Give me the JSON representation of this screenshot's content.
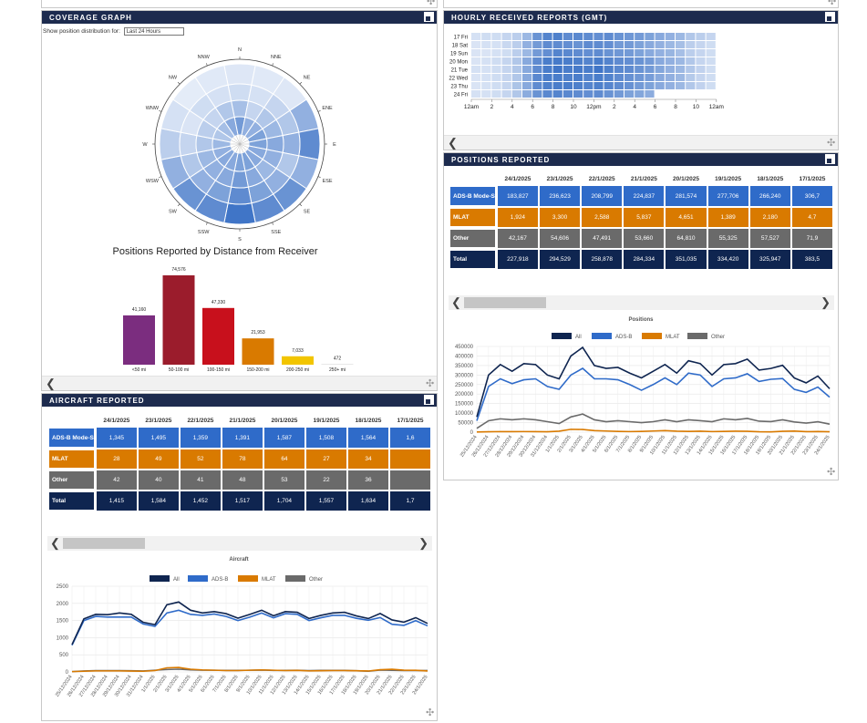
{
  "coverage": {
    "title": "COVERAGE GRAPH",
    "show_label": "Show position distribution for:",
    "select_value": "Last 24 Hours",
    "directions": [
      "N",
      "NNE",
      "NE",
      "ENE",
      "E",
      "ESE",
      "SE",
      "SSE",
      "S",
      "SSW",
      "SW",
      "WSW",
      "W",
      "WNW",
      "NW",
      "NNW"
    ],
    "rings": [
      [
        0.92,
        0.93,
        0.92,
        0.55,
        0.3,
        0.55,
        0.35,
        0.3,
        0.15,
        0.3,
        0.35,
        0.55,
        0.75,
        0.88,
        0.95,
        0.93
      ],
      [
        0.85,
        0.88,
        0.8,
        0.7,
        0.55,
        0.7,
        0.55,
        0.45,
        0.3,
        0.45,
        0.55,
        0.7,
        0.8,
        0.9,
        0.85,
        0.88
      ],
      [
        0.65,
        0.8,
        0.7,
        0.6,
        0.5,
        0.55,
        0.6,
        0.5,
        0.4,
        0.5,
        0.55,
        0.6,
        0.7,
        0.75,
        0.8,
        0.7
      ],
      [
        0.4,
        0.55,
        0.55,
        0.45,
        0.45,
        0.5,
        0.5,
        0.45,
        0.45,
        0.5,
        0.5,
        0.55,
        0.6,
        0.7,
        0.65,
        0.5
      ]
    ],
    "distance_chart_title": "Positions Reported by Distance from Receiver",
    "chart_data": {
      "type": "bar",
      "title": "Positions Reported by Distance from Receiver",
      "categories": [
        "<50 mi",
        "50-100 mi",
        "100-150 mi",
        "150-200 mi",
        "200-250 mi",
        "250+ mi"
      ],
      "values": [
        41160,
        74576,
        47330,
        21953,
        7033,
        472
      ],
      "value_labels": [
        "41,160",
        "74,576",
        "47,330",
        "21,953",
        "7,033",
        "472"
      ],
      "colors": [
        "#7b2d7f",
        "#9b1c2c",
        "#c8101c",
        "#d97a00",
        "#f2c500",
        "#d9d9d9"
      ]
    }
  },
  "hourly": {
    "title": "HOURLY RECEIVED REPORTS (GMT)",
    "days": [
      "17 Fri",
      "18 Sat",
      "19 Sun",
      "20 Mon",
      "21 Tue",
      "22 Wed",
      "23 Thu",
      "24 Fri"
    ],
    "hour_labels": [
      "12am",
      "2",
      "4",
      "6",
      "8",
      "10",
      "12pm",
      "2",
      "4",
      "6",
      "8",
      "10",
      "12am"
    ],
    "chart_data": {
      "type": "heatmap",
      "rows": [
        "17 Fri",
        "18 Sat",
        "19 Sun",
        "20 Mon",
        "21 Tue",
        "22 Wed",
        "23 Thu",
        "24 Fri"
      ],
      "x_labels": [
        "12am",
        "2",
        "4",
        "6",
        "8",
        "10",
        "12pm",
        "2",
        "4",
        "6",
        "8",
        "10",
        "12am"
      ],
      "values": [
        [
          0.12,
          0.15,
          0.15,
          0.2,
          0.25,
          0.4,
          0.65,
          0.75,
          0.78,
          0.7,
          0.72,
          0.7,
          0.68,
          0.7,
          0.65,
          0.62,
          0.6,
          0.55,
          0.5,
          0.45,
          0.4,
          0.3,
          0.25,
          0.2
        ],
        [
          0.1,
          0.12,
          0.12,
          0.18,
          0.25,
          0.45,
          0.6,
          0.7,
          0.7,
          0.68,
          0.65,
          0.7,
          0.7,
          0.68,
          0.6,
          0.6,
          0.55,
          0.5,
          0.45,
          0.4,
          0.35,
          0.25,
          0.2,
          0.15
        ],
        [
          0.1,
          0.1,
          0.12,
          0.15,
          0.25,
          0.4,
          0.6,
          0.68,
          0.75,
          0.72,
          0.7,
          0.68,
          0.7,
          0.65,
          0.62,
          0.6,
          0.55,
          0.5,
          0.45,
          0.42,
          0.35,
          0.25,
          0.2,
          0.15
        ],
        [
          0.1,
          0.12,
          0.15,
          0.2,
          0.3,
          0.5,
          0.7,
          0.8,
          0.82,
          0.8,
          0.78,
          0.75,
          0.8,
          0.75,
          0.7,
          0.68,
          0.65,
          0.6,
          0.5,
          0.45,
          0.4,
          0.3,
          0.2,
          0.15
        ],
        [
          0.12,
          0.12,
          0.15,
          0.2,
          0.3,
          0.5,
          0.7,
          0.8,
          0.85,
          0.8,
          0.82,
          0.8,
          0.85,
          0.78,
          0.72,
          0.7,
          0.65,
          0.6,
          0.52,
          0.45,
          0.4,
          0.3,
          0.22,
          0.15
        ],
        [
          0.1,
          0.12,
          0.15,
          0.2,
          0.3,
          0.5,
          0.72,
          0.8,
          0.8,
          0.78,
          0.8,
          0.75,
          0.8,
          0.76,
          0.7,
          0.66,
          0.62,
          0.58,
          0.5,
          0.45,
          0.4,
          0.28,
          0.2,
          0.15
        ],
        [
          0.1,
          0.12,
          0.15,
          0.2,
          0.32,
          0.5,
          0.7,
          0.78,
          0.8,
          0.8,
          0.78,
          0.75,
          0.78,
          0.74,
          0.7,
          0.66,
          0.6,
          0.55,
          0.5,
          0.45,
          0.4,
          0.3,
          0.22,
          0.15
        ],
        [
          0.12,
          0.12,
          0.15,
          0.2,
          0.3,
          0.48,
          0.65,
          0.72,
          0.75,
          0.72,
          0.7,
          0.68,
          0.7,
          0.65,
          0.6,
          0.55,
          0.52,
          0.48,
          0.0,
          0.0,
          0.0,
          0.0,
          0.0,
          0.0
        ]
      ]
    }
  },
  "positions": {
    "title": "POSITIONS REPORTED",
    "dates": [
      "24/1/2025",
      "23/1/2025",
      "22/1/2025",
      "21/1/2025",
      "20/1/2025",
      "19/1/2025",
      "18/1/2025",
      "17/1/2025"
    ],
    "rows": [
      {
        "label": "ADS-B Mode-S",
        "values": [
          "183,827",
          "236,623",
          "208,799",
          "224,837",
          "281,574",
          "277,706",
          "266,240",
          "306,7"
        ]
      },
      {
        "label": "MLAT",
        "values": [
          "1,924",
          "3,300",
          "2,588",
          "5,837",
          "4,651",
          "1,389",
          "2,180",
          "4,7"
        ]
      },
      {
        "label": "Other",
        "values": [
          "42,167",
          "54,606",
          "47,491",
          "53,660",
          "64,810",
          "55,325",
          "57,527",
          "71,9"
        ]
      },
      {
        "label": "Total",
        "values": [
          "227,918",
          "294,529",
          "258,878",
          "284,334",
          "351,035",
          "334,420",
          "325,947",
          "383,5"
        ]
      }
    ],
    "chart_data": {
      "type": "line",
      "title": "Positions",
      "x": [
        "25/12/2024",
        "26/12/2024",
        "27/12/2024",
        "28/12/2024",
        "29/12/2024",
        "30/12/2024",
        "31/12/2024",
        "1/1/2025",
        "2/1/2025",
        "3/1/2025",
        "4/1/2025",
        "5/1/2025",
        "6/1/2025",
        "7/1/2025",
        "8/1/2025",
        "9/1/2025",
        "10/1/2025",
        "11/1/2025",
        "12/1/2025",
        "13/1/2025",
        "14/1/2025",
        "15/1/2025",
        "16/1/2025",
        "17/1/2025",
        "18/1/2025",
        "19/1/2025",
        "20/1/2025",
        "21/1/2025",
        "22/1/2025",
        "23/1/2025",
        "24/1/2025"
      ],
      "yticks": [
        0,
        50000,
        100000,
        150000,
        200000,
        250000,
        300000,
        350000,
        400000,
        450000
      ],
      "ylim": [
        0,
        450000
      ],
      "series": [
        {
          "name": "All",
          "color": "#0f2550",
          "values": [
            80000,
            300000,
            355000,
            320000,
            360000,
            355000,
            300000,
            280000,
            400000,
            445000,
            350000,
            335000,
            340000,
            310000,
            285000,
            320000,
            355000,
            310000,
            375000,
            360000,
            300000,
            355000,
            360000,
            383500,
            325947,
            334420,
            351035,
            284334,
            258878,
            294529,
            227918
          ]
        },
        {
          "name": "ADS-B",
          "color": "#2f6bc9",
          "values": [
            60000,
            240000,
            280000,
            255000,
            275000,
            280000,
            240000,
            225000,
            300000,
            335000,
            280000,
            280000,
            275000,
            250000,
            220000,
            250000,
            285000,
            250000,
            310000,
            300000,
            240000,
            280000,
            285000,
            306700,
            266240,
            277706,
            281574,
            224837,
            208799,
            236623,
            183827
          ]
        },
        {
          "name": "MLAT",
          "color": "#d97a00",
          "values": [
            1000,
            2000,
            3000,
            2500,
            3000,
            2500,
            2000,
            5000,
            15000,
            14000,
            8000,
            6000,
            4000,
            3000,
            4000,
            6000,
            8000,
            5000,
            4000,
            5000,
            3000,
            4000,
            5000,
            4700,
            2180,
            1389,
            4651,
            5837,
            2588,
            3300,
            1924
          ]
        },
        {
          "name": "Other",
          "color": "#6a6a6a",
          "values": [
            20000,
            60000,
            70000,
            65000,
            70000,
            65000,
            55000,
            45000,
            80000,
            95000,
            65000,
            55000,
            60000,
            55000,
            50000,
            55000,
            65000,
            55000,
            65000,
            60000,
            55000,
            70000,
            65000,
            71900,
            57527,
            55325,
            64810,
            53660,
            47491,
            54606,
            42167
          ]
        }
      ]
    }
  },
  "aircraft": {
    "title": "AIRCRAFT REPORTED",
    "dates": [
      "24/1/2025",
      "23/1/2025",
      "22/1/2025",
      "21/1/2025",
      "20/1/2025",
      "19/1/2025",
      "18/1/2025",
      "17/1/2025"
    ],
    "rows": [
      {
        "label": "ADS-B Mode-S",
        "values": [
          "1,345",
          "1,495",
          "1,359",
          "1,391",
          "1,587",
          "1,508",
          "1,564",
          "1,6"
        ]
      },
      {
        "label": "MLAT",
        "values": [
          "28",
          "49",
          "52",
          "78",
          "64",
          "27",
          "34",
          ""
        ]
      },
      {
        "label": "Other",
        "values": [
          "42",
          "40",
          "41",
          "48",
          "53",
          "22",
          "36",
          ""
        ]
      },
      {
        "label": "Total",
        "values": [
          "1,415",
          "1,584",
          "1,452",
          "1,517",
          "1,704",
          "1,557",
          "1,634",
          "1,7"
        ]
      }
    ],
    "chart_data": {
      "type": "line",
      "title": "Aircraft",
      "x": [
        "25/12/2024",
        "26/12/2024",
        "27/12/2024",
        "28/12/2024",
        "29/12/2024",
        "30/12/2024",
        "31/12/2024",
        "1/1/2025",
        "2/1/2025",
        "3/1/2025",
        "4/1/2025",
        "5/1/2025",
        "6/1/2025",
        "7/1/2025",
        "8/1/2025",
        "9/1/2025",
        "10/1/2025",
        "11/1/2025",
        "12/1/2025",
        "13/1/2025",
        "14/1/2025",
        "15/1/2025",
        "16/1/2025",
        "17/1/2025",
        "18/1/2025",
        "19/1/2025",
        "20/1/2025",
        "21/1/2025",
        "22/1/2025",
        "23/1/2025",
        "24/1/2025"
      ],
      "yticks": [
        0,
        500,
        1000,
        1500,
        2000,
        2500
      ],
      "ylim": [
        0,
        2500
      ],
      "series": [
        {
          "name": "All",
          "color": "#0f2550",
          "values": [
            800,
            1550,
            1680,
            1670,
            1720,
            1680,
            1450,
            1380,
            1960,
            2040,
            1800,
            1720,
            1760,
            1700,
            1570,
            1680,
            1800,
            1640,
            1760,
            1740,
            1560,
            1650,
            1720,
            1740,
            1634,
            1557,
            1704,
            1517,
            1452,
            1584,
            1415
          ]
        },
        {
          "name": "ADS-B",
          "color": "#2f6bc9",
          "values": [
            780,
            1500,
            1620,
            1600,
            1600,
            1600,
            1400,
            1330,
            1720,
            1800,
            1680,
            1650,
            1690,
            1620,
            1500,
            1600,
            1720,
            1580,
            1700,
            1680,
            1500,
            1580,
            1650,
            1650,
            1564,
            1508,
            1587,
            1391,
            1359,
            1495,
            1345
          ]
        },
        {
          "name": "MLAT",
          "color": "#d97a00",
          "values": [
            10,
            20,
            30,
            30,
            30,
            25,
            20,
            40,
            120,
            130,
            80,
            60,
            50,
            40,
            40,
            50,
            60,
            50,
            40,
            45,
            30,
            35,
            40,
            40,
            34,
            27,
            64,
            78,
            52,
            49,
            28
          ]
        },
        {
          "name": "Other",
          "color": "#6a6a6a",
          "values": [
            10,
            30,
            40,
            40,
            40,
            35,
            30,
            50,
            70,
            80,
            60,
            50,
            50,
            45,
            45,
            50,
            55,
            45,
            45,
            50,
            40,
            45,
            45,
            45,
            36,
            22,
            53,
            48,
            41,
            40,
            42
          ]
        }
      ]
    }
  }
}
